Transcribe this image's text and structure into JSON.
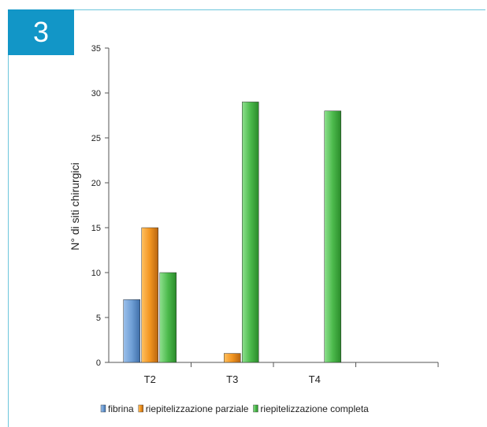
{
  "figure_number": "3",
  "chart_data": {
    "type": "bar",
    "ylabel": "N° di siti chirurgici",
    "xlabel": "",
    "ylim": [
      0,
      35
    ],
    "yticks": [
      0,
      5,
      10,
      15,
      20,
      25,
      30,
      35
    ],
    "categories": [
      "T2",
      "T3",
      "T4"
    ],
    "series": [
      {
        "name": "fibrina",
        "values": [
          7,
          0,
          0
        ],
        "color": "#6f9fd6"
      },
      {
        "name": "riepitelizzazione parziale",
        "values": [
          15,
          1,
          0
        ],
        "color": "#f29520"
      },
      {
        "name": "riepitelizzazione completa",
        "values": [
          10,
          29,
          28
        ],
        "color": "#4cba4c"
      }
    ],
    "legend_position": "bottom",
    "grid": false
  }
}
